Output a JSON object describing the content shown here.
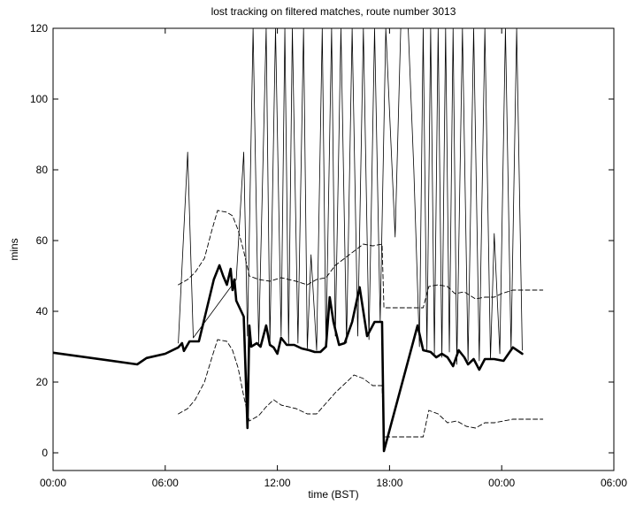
{
  "chart_data": {
    "type": "line",
    "title": "lost tracking on filtered matches, route number 3013",
    "xlabel": "time (BST)",
    "ylabel": "mins",
    "xlim": [
      0,
      30
    ],
    "ylim": [
      -5,
      120
    ],
    "grid": false,
    "x_ticks": [
      {
        "value": 0,
        "label": "00:00"
      },
      {
        "value": 6,
        "label": "06:00"
      },
      {
        "value": 12,
        "label": "12:00"
      },
      {
        "value": 18,
        "label": "18:00"
      },
      {
        "value": 24,
        "label": "00:00"
      },
      {
        "value": 30,
        "label": "06:00"
      }
    ],
    "y_ticks": [
      {
        "value": 0,
        "label": "0"
      },
      {
        "value": 20,
        "label": "20"
      },
      {
        "value": 40,
        "label": "40"
      },
      {
        "value": 60,
        "label": "60"
      },
      {
        "value": 80,
        "label": "80"
      },
      {
        "value": 100,
        "label": "100"
      },
      {
        "value": 120,
        "label": "120"
      }
    ],
    "series": [
      {
        "style": "thick",
        "color": "#000000",
        "points": [
          [
            0.0,
            28.3
          ],
          [
            4.5,
            25.0
          ],
          [
            5.0,
            26.8
          ],
          [
            6.0,
            28.0
          ],
          [
            6.7,
            29.8
          ],
          [
            6.9,
            31.0
          ],
          [
            7.0,
            28.8
          ],
          [
            7.3,
            31.5
          ],
          [
            7.8,
            31.5
          ],
          [
            8.1,
            38.0
          ],
          [
            8.6,
            49.0
          ],
          [
            8.9,
            53.0
          ],
          [
            9.1,
            50.0
          ],
          [
            9.3,
            47.5
          ],
          [
            9.5,
            52.0
          ],
          [
            9.6,
            46.0
          ],
          [
            9.7,
            49.0
          ],
          [
            9.8,
            43.0
          ],
          [
            10.2,
            38.5
          ],
          [
            10.4,
            7.0
          ],
          [
            10.5,
            36.0
          ],
          [
            10.6,
            30.0
          ],
          [
            10.9,
            31.0
          ],
          [
            11.1,
            30.0
          ],
          [
            11.4,
            36.0
          ],
          [
            11.6,
            30.5
          ],
          [
            11.8,
            29.8
          ],
          [
            12.0,
            28.0
          ],
          [
            12.2,
            32.5
          ],
          [
            12.5,
            30.5
          ],
          [
            12.9,
            30.5
          ],
          [
            13.3,
            29.5
          ],
          [
            13.7,
            29.0
          ],
          [
            14.0,
            28.5
          ],
          [
            14.3,
            28.5
          ],
          [
            14.6,
            30.0
          ],
          [
            14.8,
            44.0
          ],
          [
            15.0,
            37.0
          ],
          [
            15.3,
            30.5
          ],
          [
            15.6,
            31.0
          ],
          [
            16.0,
            37.0
          ],
          [
            16.4,
            46.8
          ],
          [
            16.8,
            33.0
          ],
          [
            17.2,
            37.0
          ],
          [
            17.6,
            37.0
          ],
          [
            17.7,
            0.5
          ],
          [
            19.5,
            36.0
          ],
          [
            19.8,
            29.0
          ],
          [
            20.2,
            28.5
          ],
          [
            20.5,
            27.0
          ],
          [
            20.8,
            28.0
          ],
          [
            21.1,
            27.0
          ],
          [
            21.4,
            24.5
          ],
          [
            21.7,
            29.0
          ],
          [
            22.0,
            27.0
          ],
          [
            22.2,
            25.0
          ],
          [
            22.5,
            26.5
          ],
          [
            22.8,
            23.5
          ],
          [
            23.1,
            26.5
          ],
          [
            23.6,
            26.5
          ],
          [
            24.1,
            26.0
          ],
          [
            24.6,
            29.8
          ],
          [
            25.1,
            28.0
          ]
        ]
      },
      {
        "style": "thin",
        "color": "#000000",
        "points": [
          [
            6.7,
            31.0
          ],
          [
            7.2,
            85.0
          ],
          [
            7.5,
            32.5
          ],
          [
            9.8,
            49.0
          ],
          [
            10.2,
            85.0
          ],
          [
            10.4,
            33.0
          ],
          [
            10.7,
            120.0
          ],
          [
            11.0,
            31.0
          ],
          [
            11.4,
            120.0
          ],
          [
            11.6,
            31.5
          ],
          [
            11.9,
            120.0
          ],
          [
            12.2,
            33.0
          ],
          [
            12.4,
            120.0
          ],
          [
            12.6,
            30.5
          ],
          [
            12.8,
            120.0
          ],
          [
            13.1,
            31.0
          ],
          [
            13.4,
            120.0
          ],
          [
            13.6,
            29.5
          ],
          [
            13.8,
            56.0
          ],
          [
            14.1,
            29.0
          ],
          [
            14.4,
            120.0
          ],
          [
            14.6,
            30.0
          ],
          [
            14.9,
            120.0
          ],
          [
            15.1,
            33.0
          ],
          [
            15.4,
            120.0
          ],
          [
            15.7,
            31.0
          ],
          [
            16.0,
            120.0
          ],
          [
            16.3,
            33.0
          ],
          [
            16.6,
            120.0
          ],
          [
            16.9,
            32.0
          ],
          [
            17.2,
            120.0
          ],
          [
            17.5,
            37.0
          ],
          [
            17.8,
            120.0
          ],
          [
            18.3,
            61.0
          ],
          [
            18.6,
            120.0
          ],
          [
            19.0,
            120.0
          ],
          [
            19.3,
            80.0
          ],
          [
            19.6,
            30.0
          ],
          [
            19.8,
            120.0
          ],
          [
            20.0,
            29.0
          ],
          [
            20.2,
            120.0
          ],
          [
            20.4,
            28.0
          ],
          [
            20.6,
            120.0
          ],
          [
            20.8,
            27.0
          ],
          [
            21.0,
            120.0
          ],
          [
            21.2,
            28.5
          ],
          [
            21.4,
            120.0
          ],
          [
            21.6,
            25.0
          ],
          [
            21.9,
            120.0
          ],
          [
            22.2,
            26.0
          ],
          [
            22.5,
            120.0
          ],
          [
            22.8,
            26.0
          ],
          [
            23.1,
            120.0
          ],
          [
            23.4,
            26.5
          ],
          [
            23.6,
            62.0
          ],
          [
            23.9,
            28.0
          ],
          [
            24.2,
            120.0
          ],
          [
            24.5,
            29.0
          ],
          [
            24.8,
            120.0
          ],
          [
            25.1,
            29.0
          ]
        ]
      },
      {
        "style": "dashed",
        "color": "#000000",
        "points": [
          [
            6.7,
            47.5
          ],
          [
            7.2,
            49.0
          ],
          [
            7.6,
            51.0
          ],
          [
            8.1,
            55.0
          ],
          [
            8.5,
            63.0
          ],
          [
            8.8,
            68.5
          ],
          [
            9.3,
            68.0
          ],
          [
            9.6,
            67.0
          ],
          [
            9.9,
            63.0
          ],
          [
            10.2,
            57.0
          ],
          [
            10.5,
            50.0
          ],
          [
            11.0,
            49.0
          ],
          [
            11.6,
            48.5
          ],
          [
            12.2,
            49.5
          ],
          [
            13.0,
            48.5
          ],
          [
            13.6,
            47.5
          ],
          [
            14.1,
            49.0
          ],
          [
            14.6,
            49.5
          ],
          [
            15.1,
            53.0
          ],
          [
            15.6,
            55.0
          ],
          [
            16.1,
            57.0
          ],
          [
            16.6,
            59.0
          ],
          [
            17.1,
            58.5
          ],
          [
            17.6,
            59.0
          ],
          [
            17.7,
            41.0
          ],
          [
            18.4,
            41.0
          ],
          [
            19.3,
            41.0
          ],
          [
            19.8,
            41.0
          ],
          [
            20.1,
            47.0
          ],
          [
            20.6,
            47.5
          ],
          [
            21.1,
            47.0
          ],
          [
            21.5,
            45.0
          ],
          [
            22.0,
            45.5
          ],
          [
            22.6,
            43.5
          ],
          [
            23.1,
            44.0
          ],
          [
            23.6,
            44.0
          ],
          [
            24.0,
            45.0
          ],
          [
            24.6,
            46.0
          ],
          [
            25.4,
            46.0
          ],
          [
            26.2,
            46.0
          ]
        ]
      },
      {
        "style": "dashed",
        "color": "#000000",
        "points": [
          [
            6.7,
            11.0
          ],
          [
            7.2,
            12.5
          ],
          [
            7.6,
            15.0
          ],
          [
            8.1,
            20.0
          ],
          [
            8.5,
            27.0
          ],
          [
            8.8,
            32.0
          ],
          [
            9.3,
            31.5
          ],
          [
            9.6,
            29.0
          ],
          [
            9.9,
            24.0
          ],
          [
            10.2,
            16.0
          ],
          [
            10.5,
            9.0
          ],
          [
            11.0,
            10.5
          ],
          [
            11.4,
            13.0
          ],
          [
            11.8,
            15.0
          ],
          [
            12.2,
            13.5
          ],
          [
            13.0,
            12.5
          ],
          [
            13.6,
            11.0
          ],
          [
            14.1,
            11.0
          ],
          [
            14.6,
            14.0
          ],
          [
            15.1,
            17.0
          ],
          [
            15.6,
            19.5
          ],
          [
            16.1,
            22.0
          ],
          [
            16.6,
            21.0
          ],
          [
            17.1,
            19.0
          ],
          [
            17.6,
            19.0
          ],
          [
            17.7,
            4.5
          ],
          [
            18.4,
            4.5
          ],
          [
            19.3,
            4.5
          ],
          [
            19.8,
            4.5
          ],
          [
            20.1,
            12.0
          ],
          [
            20.6,
            11.0
          ],
          [
            21.1,
            8.5
          ],
          [
            21.6,
            9.0
          ],
          [
            22.1,
            7.5
          ],
          [
            22.6,
            7.0
          ],
          [
            23.1,
            8.5
          ],
          [
            23.6,
            8.5
          ],
          [
            24.1,
            9.0
          ],
          [
            24.6,
            9.5
          ],
          [
            25.4,
            9.5
          ],
          [
            26.2,
            9.5
          ]
        ]
      }
    ]
  }
}
